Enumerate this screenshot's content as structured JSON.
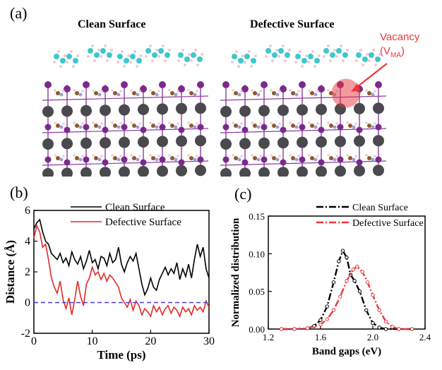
{
  "panels": {
    "a": "(a)",
    "b": "(b)",
    "c": "(c)"
  },
  "structures": {
    "clean_title": "Clean Surface",
    "defective_title": "Defective Surface",
    "vacancy_label": "Vacancy",
    "vacancy_symbol_base": "(V",
    "vacancy_symbol_sub": "MA",
    "vacancy_symbol_close": ")",
    "colors": {
      "pb": "#4a4a4e",
      "iodine": "#7b2a8c",
      "carbon": "#8b5a2b",
      "nitrogen": "#9aa0d8",
      "hydrogen": "#f2c8d0",
      "molecule": "#3ec7cf",
      "vacancy": "#e8383d"
    }
  },
  "chart_data": [
    {
      "type": "line",
      "xlabel": "Time (ps)",
      "ylabel": "Distance (Å)",
      "xlim": [
        0,
        30
      ],
      "ylim": [
        -2,
        6
      ],
      "xticks": [
        "0",
        "10",
        "20",
        "30"
      ],
      "yticks": [
        "-2",
        "0",
        "2",
        "4",
        "6"
      ],
      "series": [
        {
          "name": "Clean Surface",
          "color": "#000000",
          "x": [
            0,
            0.5,
            1,
            1.5,
            2,
            2.5,
            3,
            3.5,
            4,
            4.5,
            5,
            5.5,
            6,
            6.5,
            7,
            7.5,
            8,
            8.5,
            9,
            9.5,
            10,
            10.5,
            11,
            11.5,
            12,
            12.5,
            13,
            13.5,
            14,
            14.5,
            15,
            15.5,
            16,
            16.5,
            17,
            17.5,
            18,
            18.5,
            19,
            19.5,
            20,
            20.5,
            21,
            21.5,
            22,
            22.5,
            23,
            23.5,
            24,
            24.5,
            25,
            25.5,
            26,
            26.5,
            27,
            27.5,
            28,
            28.5,
            29,
            29.5,
            30
          ],
          "y": [
            4.8,
            5.2,
            5.4,
            4.6,
            4.0,
            3.8,
            3.2,
            3.0,
            2.8,
            3.2,
            2.6,
            2.9,
            2.4,
            3.3,
            2.8,
            2.5,
            3.0,
            2.2,
            2.7,
            3.4,
            2.6,
            2.8,
            2.2,
            3.0,
            2.9,
            2.4,
            3.2,
            2.6,
            2.8,
            3.6,
            2.5,
            2.0,
            2.6,
            3.0,
            2.7,
            3.2,
            2.2,
            1.2,
            0.5,
            0.9,
            1.6,
            1.0,
            0.8,
            1.5,
            1.9,
            2.3,
            1.8,
            2.2,
            1.9,
            2.6,
            1.5,
            2.2,
            1.7,
            2.5,
            1.6,
            2.8,
            3.8,
            3.0,
            3.6,
            2.2,
            1.6
          ]
        },
        {
          "name": "Defective Surface",
          "color": "#e22a28",
          "x": [
            0,
            0.5,
            1,
            1.5,
            2,
            2.5,
            3,
            3.5,
            4,
            4.5,
            5,
            5.5,
            6,
            6.5,
            7,
            7.5,
            8,
            8.5,
            9,
            9.5,
            10,
            10.5,
            11,
            11.5,
            12,
            12.5,
            13,
            13.5,
            14,
            14.5,
            15,
            15.5,
            16,
            16.5,
            17,
            17.5,
            18,
            18.5,
            19,
            19.5,
            20,
            20.5,
            21,
            21.5,
            22,
            22.5,
            23,
            23.5,
            24,
            24.5,
            25,
            25.5,
            26,
            26.5,
            27,
            27.5,
            28,
            28.5,
            29,
            29.5,
            30
          ],
          "y": [
            4.2,
            5.0,
            4.6,
            3.6,
            3.8,
            2.8,
            1.6,
            1.0,
            0.6,
            1.4,
            0.2,
            -0.4,
            0.3,
            -0.8,
            0.2,
            1.4,
            0.4,
            -0.2,
            1.2,
            1.6,
            2.3,
            1.8,
            2.0,
            1.5,
            1.9,
            1.4,
            1.8,
            1.6,
            1.3,
            1.0,
            0.3,
            0.0,
            -0.3,
            0.2,
            -0.5,
            0.1,
            -0.2,
            -0.8,
            -0.4,
            -0.6,
            -0.9,
            -0.2,
            -0.6,
            -0.3,
            -0.8,
            -0.4,
            -0.2,
            -0.7,
            -0.3,
            -0.5,
            -0.9,
            -0.3,
            -0.6,
            -0.4,
            -0.8,
            -0.2,
            -0.5,
            -0.3,
            -0.6,
            0.1,
            -0.3
          ]
        },
        {
          "name": "",
          "color": "#4b3fd6",
          "dashed": true,
          "x": [
            0,
            30
          ],
          "y": [
            0,
            0
          ]
        }
      ],
      "legend": "top-right"
    },
    {
      "type": "line",
      "xlabel": "Band gaps (eV)",
      "ylabel": "Normalized distribution",
      "xlim": [
        1.2,
        2.4
      ],
      "ylim": [
        0,
        0.15
      ],
      "xticks": [
        "1.2",
        "1.6",
        "2.0",
        "2.4"
      ],
      "yticks": [
        "0.00",
        "0.05",
        "0.10",
        "0.15"
      ],
      "series": [
        {
          "name": "Clean Surface",
          "color": "#000000",
          "x": [
            1.3,
            1.4,
            1.5,
            1.55,
            1.6,
            1.65,
            1.7,
            1.74,
            1.77,
            1.8,
            1.83,
            1.86,
            1.9,
            1.95,
            2.0,
            2.05,
            2.1,
            2.2,
            2.3
          ],
          "y": [
            0,
            0,
            0.001,
            0.004,
            0.012,
            0.03,
            0.062,
            0.09,
            0.104,
            0.095,
            0.072,
            0.064,
            0.05,
            0.025,
            0.008,
            0.002,
            0,
            0,
            0
          ]
        },
        {
          "name": "Defective Surface",
          "color": "#e8383d",
          "x": [
            1.3,
            1.4,
            1.5,
            1.6,
            1.65,
            1.7,
            1.75,
            1.8,
            1.85,
            1.88,
            1.92,
            1.96,
            2.0,
            2.05,
            2.1,
            2.15,
            2.2,
            2.3
          ],
          "y": [
            0,
            0,
            0.001,
            0.006,
            0.013,
            0.025,
            0.043,
            0.064,
            0.079,
            0.083,
            0.076,
            0.062,
            0.045,
            0.025,
            0.01,
            0.003,
            0,
            0
          ]
        }
      ],
      "legend": "top-right"
    }
  ]
}
